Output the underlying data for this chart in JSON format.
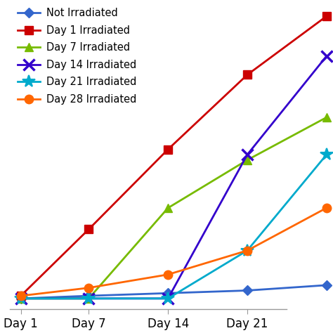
{
  "x_labels": [
    "Day 1",
    "Day 7",
    "Day 14",
    "Day 21"
  ],
  "x_values": [
    1,
    7,
    14,
    21,
    28
  ],
  "x_tick_positions": [
    1,
    7,
    14,
    21
  ],
  "series": [
    {
      "label": "Not Irradiated",
      "color": "#3366cc",
      "marker": "D",
      "markersize": 7,
      "markeredgewidth": 1.0,
      "y": [
        0.04,
        0.05,
        0.06,
        0.07,
        0.09
      ],
      "linestyle": "-",
      "linewidth": 2.0
    },
    {
      "label": "Day 1 Irradiated",
      "color": "#cc0000",
      "marker": "s",
      "markersize": 8,
      "markeredgewidth": 1.0,
      "y": [
        0.05,
        0.3,
        0.6,
        0.88,
        1.1
      ],
      "linestyle": "-",
      "linewidth": 2.0
    },
    {
      "label": "Day 7 Irradiated",
      "color": "#77bb00",
      "marker": "^",
      "markersize": 9,
      "markeredgewidth": 1.0,
      "y": [
        0.04,
        0.04,
        0.38,
        0.56,
        0.72
      ],
      "linestyle": "-",
      "linewidth": 2.0
    },
    {
      "label": "Day 14 Irradiated",
      "color": "#3300cc",
      "marker": "x",
      "markersize": 12,
      "markeredgewidth": 2.5,
      "y": [
        0.04,
        0.04,
        0.04,
        0.58,
        0.95
      ],
      "linestyle": "-",
      "linewidth": 2.0
    },
    {
      "label": "Day 21 Irradiated",
      "color": "#00aacc",
      "marker": "*",
      "markersize": 13,
      "markeredgewidth": 1.5,
      "y": [
        0.04,
        0.04,
        0.04,
        0.22,
        0.58
      ],
      "linestyle": "-",
      "linewidth": 2.0
    },
    {
      "label": "Day 28 Irradiated",
      "color": "#ff6600",
      "marker": "o",
      "markersize": 9,
      "markeredgewidth": 1.0,
      "y": [
        0.05,
        0.08,
        0.13,
        0.22,
        0.38
      ],
      "linestyle": "-",
      "linewidth": 2.0
    }
  ],
  "ylim": [
    0,
    1.15
  ],
  "xlim": [
    0.0,
    24.5
  ],
  "background_color": "#ffffff",
  "legend_fontsize": 10.5,
  "axis_label_fontsize": 12
}
